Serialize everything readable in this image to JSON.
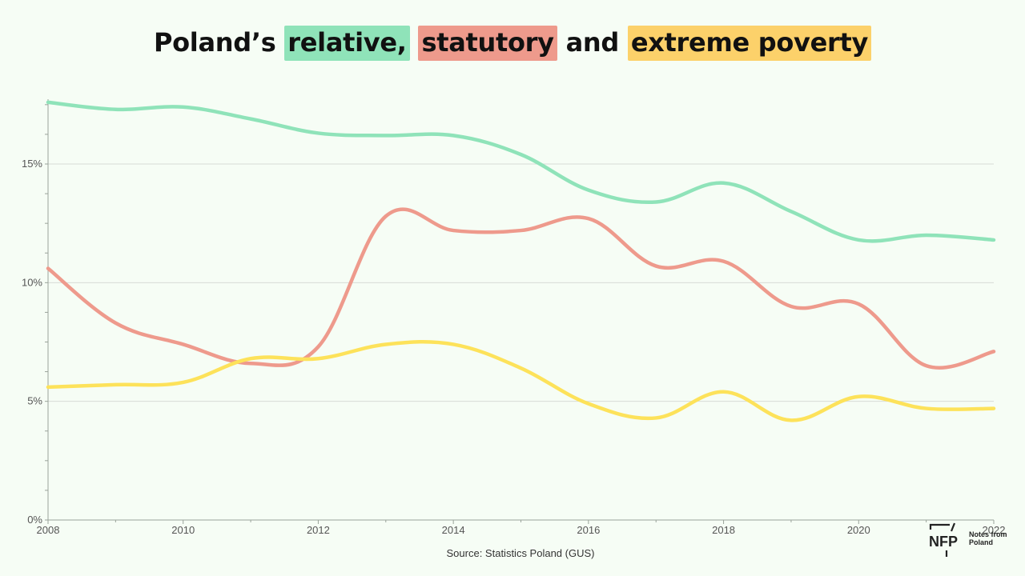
{
  "title": {
    "prefix": "Poland’s ",
    "relative": "relative,",
    "statutory": "statutory",
    "middle": " and ",
    "extreme": "extreme poverty"
  },
  "source": "Source: Statistics Poland (GUS)",
  "logo": {
    "mark": "NFP",
    "line1": "Notes from",
    "line2": "Poland"
  },
  "colors": {
    "background": "#f6fdf5",
    "relative": "#8fe3b9",
    "statutory": "#ee9a8c",
    "extreme": "#fde25a"
  },
  "chart_data": {
    "type": "line",
    "title": "Poland’s relative, statutory and extreme poverty",
    "x": [
      2008,
      2009,
      2010,
      2011,
      2012,
      2013,
      2014,
      2015,
      2016,
      2017,
      2018,
      2019,
      2020,
      2021,
      2022
    ],
    "x_ticks": [
      "2008",
      "2010",
      "2012",
      "2014",
      "2016",
      "2018",
      "2020",
      "2022"
    ],
    "y_ticks": [
      "0%",
      "5%",
      "10%",
      "15%"
    ],
    "ylim": [
      0,
      18
    ],
    "xlim": [
      2008,
      2022
    ],
    "grid": true,
    "series": [
      {
        "name": "relative",
        "color": "#8fe3b9",
        "values": [
          17.6,
          17.3,
          17.4,
          16.9,
          16.3,
          16.2,
          16.2,
          15.4,
          13.9,
          13.4,
          14.2,
          13.0,
          11.8,
          12.0,
          11.8
        ]
      },
      {
        "name": "statutory",
        "color": "#ee9a8c",
        "values": [
          10.6,
          8.3,
          7.4,
          6.6,
          7.3,
          12.8,
          12.2,
          12.2,
          12.7,
          10.7,
          10.9,
          9.0,
          9.1,
          6.5,
          7.1
        ]
      },
      {
        "name": "extreme",
        "color": "#fde25a",
        "values": [
          5.6,
          5.7,
          5.8,
          6.8,
          6.8,
          7.4,
          7.4,
          6.4,
          4.9,
          4.3,
          5.4,
          4.2,
          5.2,
          4.7,
          4.7
        ]
      }
    ]
  }
}
